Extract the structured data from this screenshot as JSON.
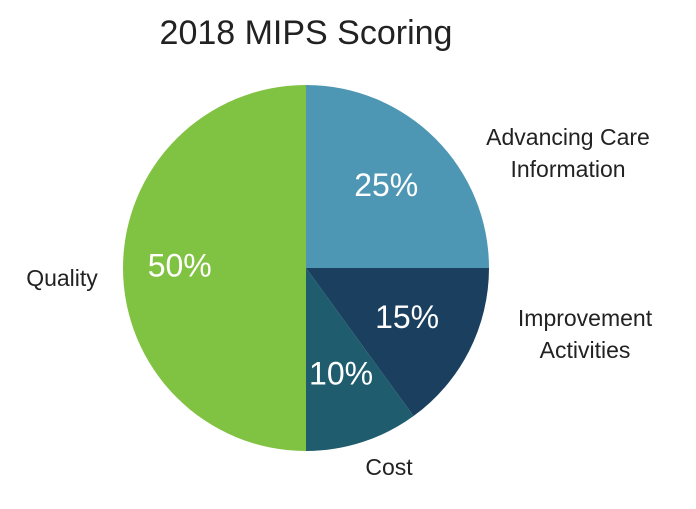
{
  "chart_data": {
    "type": "pie",
    "title": "2018 MIPS Scoring",
    "categories": [
      "Advancing Care Information",
      "Improvement Activities",
      "Cost",
      "Quality"
    ],
    "values": [
      25,
      15,
      10,
      50
    ],
    "value_labels": [
      "25%",
      "15%",
      "10%",
      "50%"
    ],
    "colors": [
      "#4e97b4",
      "#1b3f5e",
      "#1f5c6e",
      "#80c241"
    ]
  }
}
